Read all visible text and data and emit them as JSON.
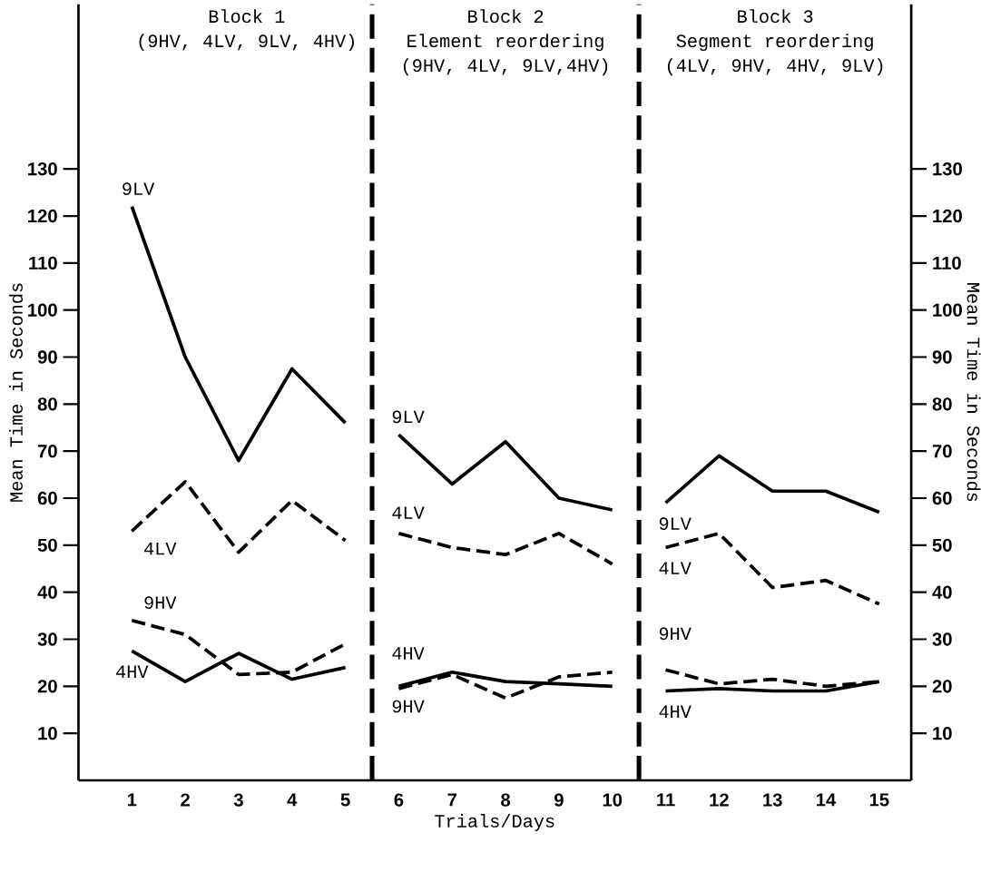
{
  "chart_data": {
    "type": "line",
    "xlabel": "Trials/Days",
    "ylabel": "Mean Time in Seconds",
    "y2label": "Mean Time in Seconds",
    "xlim": [
      0,
      15.6
    ],
    "xticks": [
      1,
      2,
      3,
      4,
      5,
      6,
      7,
      8,
      9,
      10,
      11,
      12,
      13,
      14,
      15
    ],
    "ylim": [
      0,
      165
    ],
    "yticks": [
      10,
      20,
      30,
      40,
      50,
      60,
      70,
      80,
      90,
      100,
      110,
      120,
      130
    ],
    "y2lim": [
      0,
      165
    ],
    "y2ticks": [
      10,
      20,
      30,
      40,
      50,
      60,
      70,
      80,
      90,
      100,
      110,
      120,
      130
    ],
    "grid": false,
    "marker": "none",
    "ref_lines": [
      {
        "axis": "x",
        "value": 5.5,
        "color": "#000000",
        "line_style": "dashed"
      },
      {
        "axis": "x",
        "value": 10.5,
        "color": "#000000",
        "line_style": "dashed"
      }
    ],
    "annotations": [
      "Block 1",
      "(9HV, 4LV, 9LV, 4HV)",
      "Block 2",
      "Element reordering",
      "(9HV, 4LV, 9LV,4HV)",
      "Block 3",
      "Segment reordering",
      "(4LV, 9HV, 4HV, 9LV)"
    ],
    "series": [
      {
        "name": "9LV",
        "color": "#000000",
        "line_style": "solid",
        "x": [
          1,
          2,
          3,
          4,
          5
        ],
        "values": [
          122,
          90,
          68,
          87.5,
          76
        ]
      },
      {
        "name": "4LV",
        "color": "#000000",
        "line_style": "dashed",
        "x": [
          1,
          2,
          3,
          4,
          5
        ],
        "values": [
          53,
          63.5,
          48.5,
          59.5,
          51
        ]
      },
      {
        "name": "9HV",
        "color": "#000000",
        "line_style": "dashed",
        "x": [
          1,
          2,
          3,
          4,
          5
        ],
        "values": [
          34,
          31,
          22.5,
          23,
          29
        ]
      },
      {
        "name": "4HV",
        "color": "#000000",
        "line_style": "solid",
        "x": [
          1,
          2,
          3,
          4,
          5
        ],
        "values": [
          27.5,
          21,
          27,
          21.5,
          24
        ]
      },
      {
        "name": "9LV",
        "color": "#000000",
        "line_style": "solid",
        "x": [
          6,
          7,
          8,
          9,
          10
        ],
        "values": [
          73.5,
          63,
          72,
          60,
          57.5
        ]
      },
      {
        "name": "4LV",
        "color": "#000000",
        "line_style": "dashed",
        "x": [
          6,
          7,
          8,
          9,
          10
        ],
        "values": [
          52.5,
          49.5,
          48,
          52.5,
          46
        ]
      },
      {
        "name": "9HV",
        "color": "#000000",
        "line_style": "dashed",
        "x": [
          6,
          7,
          8,
          9,
          10
        ],
        "values": [
          19.5,
          22.5,
          17.5,
          22,
          23
        ]
      },
      {
        "name": "4HV",
        "color": "#000000",
        "line_style": "solid",
        "x": [
          6,
          7,
          8,
          9,
          10
        ],
        "values": [
          20,
          23,
          21,
          20.5,
          20
        ]
      },
      {
        "name": "9LV",
        "color": "#000000",
        "line_style": "solid",
        "x": [
          11,
          12,
          13,
          14,
          15
        ],
        "values": [
          59,
          69,
          61.5,
          61.5,
          57
        ]
      },
      {
        "name": "4LV",
        "color": "#000000",
        "line_style": "dashed",
        "x": [
          11,
          12,
          13,
          14,
          15
        ],
        "values": [
          49.5,
          52.5,
          41,
          42.5,
          37.5
        ]
      },
      {
        "name": "9HV",
        "color": "#000000",
        "line_style": "dashed",
        "x": [
          11,
          12,
          13,
          14,
          15
        ],
        "values": [
          23.5,
          20.5,
          21.5,
          20,
          21
        ]
      },
      {
        "name": "4HV",
        "color": "#000000",
        "line_style": "solid",
        "x": [
          11,
          12,
          13,
          14,
          15
        ],
        "values": [
          19,
          19.5,
          19,
          19,
          21
        ]
      }
    ]
  }
}
